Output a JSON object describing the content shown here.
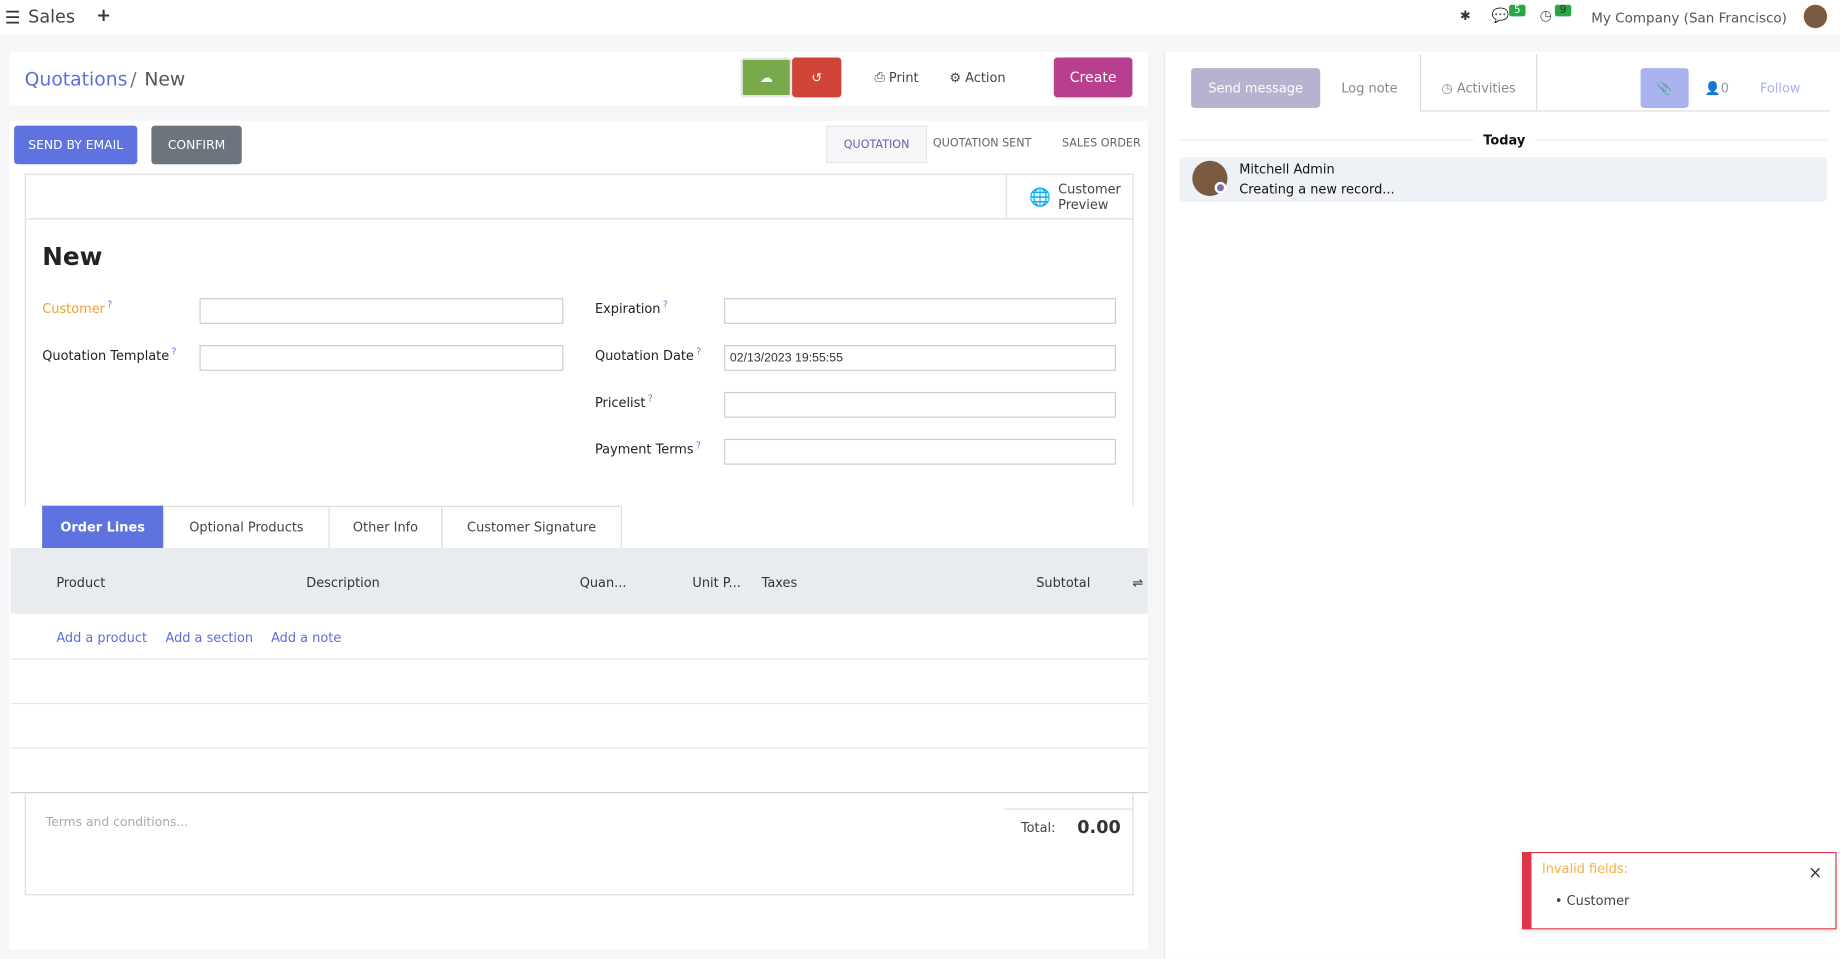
{
  "topbar": {
    "app_name": "Sales",
    "messages_count": "5",
    "activities_count": "9",
    "company": "My Company (San Francisco)"
  },
  "breadcrumb": {
    "parent": "Quotations",
    "separator": "/",
    "current": "New"
  },
  "toolbar": {
    "print": "Print",
    "action": "Action",
    "create": "Create"
  },
  "statusbar": {
    "send_by_email": "SEND BY EMAIL",
    "confirm": "CONFIRM",
    "stages": [
      "QUOTATION",
      "QUOTATION SENT",
      "SALES ORDER"
    ],
    "active_stage": "QUOTATION"
  },
  "form": {
    "customer_preview": "Customer Preview",
    "title": "New",
    "left_fields": [
      {
        "label": "Customer",
        "value": ""
      },
      {
        "label": "Quotation Template",
        "value": ""
      }
    ],
    "right_fields": [
      {
        "label": "Expiration",
        "value": ""
      },
      {
        "label": "Quotation Date",
        "value": "02/13/2023 19:55:55"
      },
      {
        "label": "Pricelist",
        "value": ""
      },
      {
        "label": "Payment Terms",
        "value": ""
      }
    ],
    "help": "?"
  },
  "tabs": [
    "Order Lines",
    "Optional Products",
    "Other Info",
    "Customer Signature"
  ],
  "order_lines": {
    "columns": [
      "Product",
      "Description",
      "Quan...",
      "Unit P...",
      "Taxes",
      "Subtotal"
    ],
    "add_product": "Add a product",
    "add_section": "Add a section",
    "add_note": "Add a note"
  },
  "footer": {
    "terms_placeholder": "Terms and conditions...",
    "total_label": "Total:",
    "total_value": "0.00"
  },
  "chatter": {
    "send_message": "Send message",
    "log_note": "Log note",
    "activities": "Activities",
    "followers_count": "0",
    "follow": "Follow",
    "date_separator": "Today",
    "message": {
      "author": "Mitchell Admin",
      "body": "Creating a new record..."
    }
  },
  "toast": {
    "title": "Invalid fields:",
    "items": [
      "Customer"
    ],
    "close": "×"
  },
  "colors": {
    "primary": "#5f73e0",
    "create": "#b83e8f",
    "save": "#7aa94c",
    "discard": "#d04437",
    "required": "#f0a030",
    "error": "#dc3545"
  }
}
